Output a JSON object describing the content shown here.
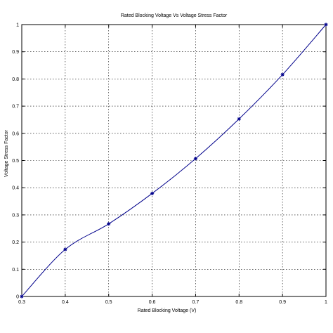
{
  "chart_data": {
    "type": "line",
    "title": "Rated Blocking Voltage Vs Voltage Stress Factor",
    "xlabel": "Rated Blocking Voltage (V)",
    "ylabel": "Voltage Stress Factor",
    "xlim": [
      0.3,
      1
    ],
    "ylim": [
      0,
      1
    ],
    "x_ticks": [
      "0.3",
      "0.4",
      "0.5",
      "0.6",
      "0.7",
      "0.8",
      "0.9",
      "1"
    ],
    "y_ticks": [
      "0",
      "0.1",
      "0.2",
      "0.3",
      "0.4",
      "0.5",
      "0.6",
      "0.7",
      "0.8",
      "0.9",
      "1"
    ],
    "grid": true,
    "series": [
      {
        "x": [
          0.3,
          0.4,
          0.5,
          0.6,
          0.7,
          0.8,
          0.9,
          1.0
        ],
        "y": [
          0.0,
          0.173,
          0.267,
          0.379,
          0.507,
          0.653,
          0.816,
          1.0
        ],
        "color": "#00008b",
        "marker": "*"
      }
    ]
  }
}
